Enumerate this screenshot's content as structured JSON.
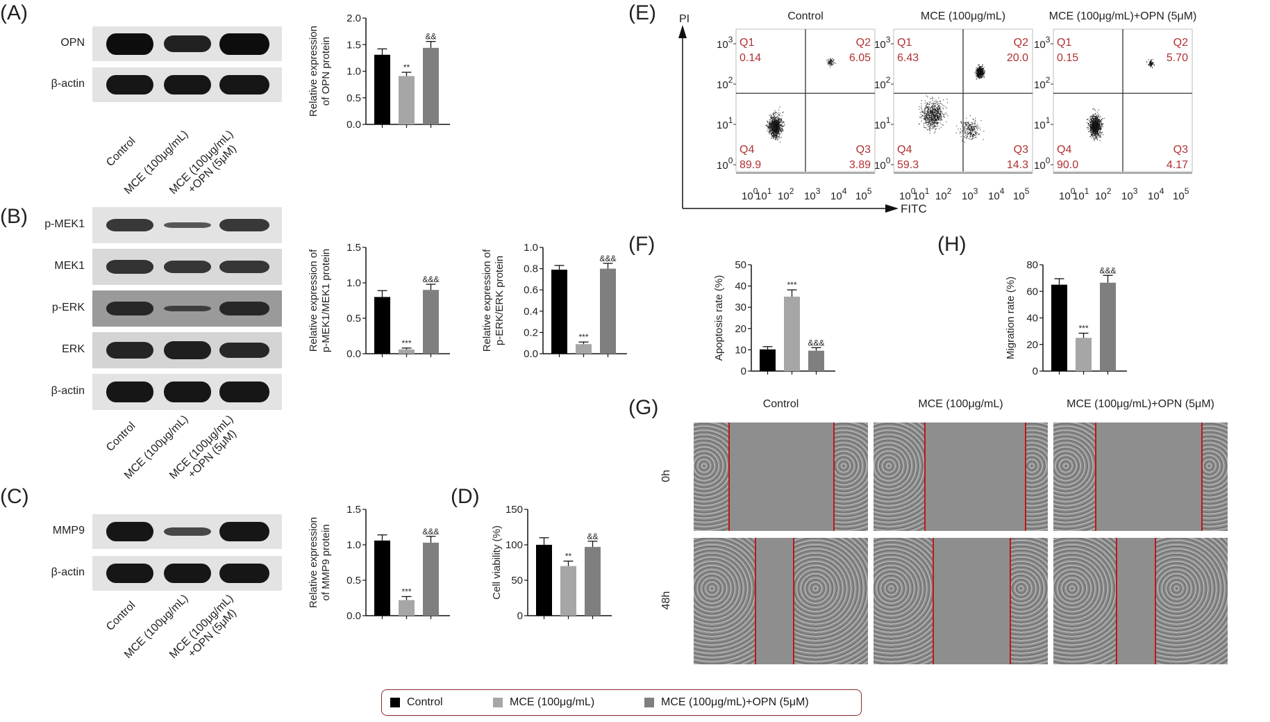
{
  "colors": {
    "control": "#000000",
    "mce": "#a6a6a6",
    "mce_opn": "#7f7f7f",
    "quadrant_text": "#b03030",
    "scratch_line": "#c0161a",
    "legend_border": "#8b2a2a"
  },
  "panel_labels": {
    "A": "(A)",
    "B": "(B)",
    "C": "(C)",
    "D": "(D)",
    "E": "(E)",
    "F": "(F)",
    "G": "(G)",
    "H": "(H)"
  },
  "groups": [
    "Control",
    "MCE (100μg/mL)",
    "MCE (100μg/mL)+OPN (5μM)"
  ],
  "lane_labels": [
    "Control",
    "MCE (100μg/mL)",
    "MCE (100μg/mL)\n+OPN (5μM)"
  ],
  "lane_label_parts": {
    "line1": [
      "Control",
      "MCE (100μg/mL)",
      "MCE (100μg/mL)"
    ],
    "line2": [
      "",
      "",
      "+OPN (5μM)"
    ]
  },
  "blots": {
    "A": {
      "rows": [
        "OPN",
        "β-actin"
      ]
    },
    "B": {
      "rows": [
        "p-MEK1",
        "MEK1",
        "p-ERK",
        "ERK",
        "β-actin"
      ]
    },
    "C": {
      "rows": [
        "MMP9",
        "β-actin"
      ]
    }
  },
  "chart_data": [
    {
      "id": "A-opn",
      "type": "bar",
      "categories": [
        "Control",
        "MCE (100μg/mL)",
        "MCE (100μg/mL)+OPN (5μM)"
      ],
      "values": [
        1.31,
        0.91,
        1.44
      ],
      "errors": [
        0.11,
        0.07,
        0.12
      ],
      "annotations": [
        "",
        "**",
        "&&"
      ],
      "ylabel": [
        "Relative expression",
        "of OPN protein"
      ],
      "ylim": [
        0,
        2.0
      ],
      "yticks": [
        0.0,
        0.5,
        1.0,
        1.5,
        2.0
      ],
      "ytick_labels": [
        "0.0",
        "0.5",
        "1.0",
        "1.5",
        "2.0"
      ]
    },
    {
      "id": "B-pmek1",
      "type": "bar",
      "categories": [
        "Control",
        "MCE (100μg/mL)",
        "MCE (100μg/mL)+OPN (5μM)"
      ],
      "values": [
        0.8,
        0.06,
        0.9
      ],
      "errors": [
        0.09,
        0.02,
        0.08
      ],
      "annotations": [
        "",
        "***",
        "&&&"
      ],
      "ylabel": [
        "Relative expression of",
        "p-MEK1/MEK1 protein"
      ],
      "ylim": [
        0,
        1.5
      ],
      "yticks": [
        0.0,
        0.5,
        1.0,
        1.5
      ],
      "ytick_labels": [
        "0.0",
        "0.5",
        "1.0",
        "1.5"
      ]
    },
    {
      "id": "B-perk",
      "type": "bar",
      "categories": [
        "Control",
        "MCE (100μg/mL)",
        "MCE (100μg/mL)+OPN (5μM)"
      ],
      "values": [
        0.79,
        0.09,
        0.8
      ],
      "errors": [
        0.04,
        0.02,
        0.05
      ],
      "annotations": [
        "",
        "***",
        "&&&"
      ],
      "ylabel": [
        "Relative expression of",
        "p-ERK/ERK protein"
      ],
      "ylim": [
        0,
        1.0
      ],
      "yticks": [
        0.0,
        0.2,
        0.4,
        0.6,
        0.8,
        1.0
      ],
      "ytick_labels": [
        "0.0",
        "0.2",
        "0.4",
        "0.6",
        "0.8",
        "1.0"
      ]
    },
    {
      "id": "C-mmp9",
      "type": "bar",
      "categories": [
        "Control",
        "MCE (100μg/mL)",
        "MCE (100μg/mL)+OPN (5μM)"
      ],
      "values": [
        1.06,
        0.22,
        1.03
      ],
      "errors": [
        0.08,
        0.05,
        0.09
      ],
      "annotations": [
        "",
        "***",
        "&&&"
      ],
      "ylabel": [
        "Relative expression",
        "of MMP9 protein"
      ],
      "ylim": [
        0,
        1.5
      ],
      "yticks": [
        0.0,
        0.5,
        1.0,
        1.5
      ],
      "ytick_labels": [
        "0.0",
        "0.5",
        "1.0",
        "1.5"
      ]
    },
    {
      "id": "D-viability",
      "type": "bar",
      "categories": [
        "Control",
        "MCE (100μg/mL)",
        "MCE (100μg/mL)+OPN (5μM)"
      ],
      "values": [
        100,
        70,
        97
      ],
      "errors": [
        10,
        7,
        8
      ],
      "annotations": [
        "",
        "**",
        "&&"
      ],
      "ylabel": [
        "Cell viability (%)"
      ],
      "ylim": [
        0,
        150
      ],
      "yticks": [
        0,
        50,
        100,
        150
      ],
      "ytick_labels": [
        "0",
        "50",
        "100",
        "150"
      ]
    },
    {
      "id": "F-apoptosis",
      "type": "bar",
      "categories": [
        "Control",
        "MCE (100μg/mL)",
        "MCE (100μg/mL)+OPN (5μM)"
      ],
      "values": [
        10.2,
        35.0,
        9.6
      ],
      "errors": [
        1.3,
        3.2,
        1.4
      ],
      "annotations": [
        "",
        "***",
        "&&&"
      ],
      "ylabel": [
        "Apoptosis rate (%)"
      ],
      "ylim": [
        0,
        50
      ],
      "yticks": [
        0,
        10,
        20,
        30,
        40,
        50
      ],
      "ytick_labels": [
        "0",
        "10",
        "20",
        "30",
        "40",
        "50"
      ]
    },
    {
      "id": "H-migration",
      "type": "bar",
      "categories": [
        "Control",
        "MCE (100μg/mL)",
        "MCE (100μg/mL)+OPN (5μM)"
      ],
      "values": [
        65,
        25,
        66.5
      ],
      "errors": [
        4.5,
        3.5,
        5.5
      ],
      "annotations": [
        "",
        "***",
        "&&&"
      ],
      "ylabel": [
        "Migration rate (%)"
      ],
      "ylim": [
        0,
        80
      ],
      "yticks": [
        0,
        20,
        40,
        60,
        80
      ],
      "ytick_labels": [
        "0",
        "20",
        "40",
        "60",
        "80"
      ]
    },
    {
      "id": "E-flow",
      "type": "scatter",
      "xlabel": "FITC",
      "ylabel": "PI",
      "xtick_labels": [
        "10^0",
        "10^1",
        "10^2",
        "10^3",
        "10^4",
        "10^5"
      ],
      "ytick_labels": [
        "10^0",
        "10^1",
        "10^2",
        "10^3"
      ],
      "plots": [
        {
          "title": "Control",
          "Q1": "0.14",
          "Q2": "6.05",
          "Q3": "3.89",
          "Q4": "89.9"
        },
        {
          "title": "MCE (100μg/mL)",
          "Q1": "6.43",
          "Q2": "20.0",
          "Q3": "14.3",
          "Q4": "59.3"
        },
        {
          "title": "MCE (100μg/mL)+OPN (5μM)",
          "Q1": "0.15",
          "Q2": "5.70",
          "Q3": "4.17",
          "Q4": "90.0"
        }
      ]
    }
  ],
  "flow": {
    "axis_x": "FITC",
    "axis_y": "PI",
    "quadrant_names": [
      "Q1",
      "Q2",
      "Q3",
      "Q4"
    ],
    "tick_base": "10",
    "x_exponents": [
      "0",
      "1",
      "2",
      "3",
      "4",
      "5"
    ],
    "y_exponents": [
      "0",
      "1",
      "2",
      "3"
    ]
  },
  "wound": {
    "titles": [
      "Control",
      "MCE (100μg/mL)",
      "MCE (100μg/mL)+OPN (5μM)"
    ],
    "rows": [
      "0h",
      "48h"
    ]
  },
  "legend": {
    "items": [
      {
        "label": "Control",
        "color": "#000000"
      },
      {
        "label": "MCE (100μg/mL)",
        "color": "#a6a6a6"
      },
      {
        "label": "MCE (100μg/mL)+OPN (5μM)",
        "color": "#7f7f7f"
      }
    ]
  }
}
